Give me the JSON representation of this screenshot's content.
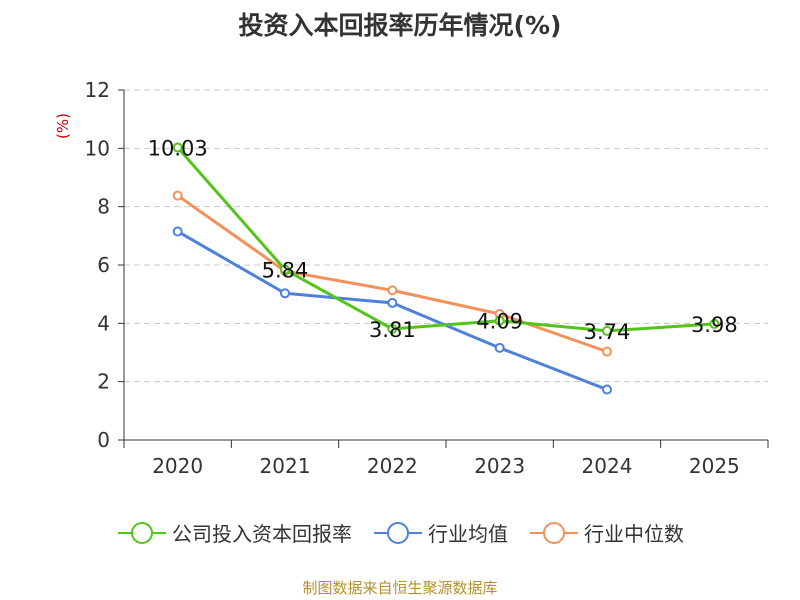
{
  "chart_data": {
    "type": "line",
    "title": "投资入本回报率历年情况(%)",
    "ylabel": "(%)",
    "xlabel": "",
    "categories": [
      "2020",
      "2021",
      "2022",
      "2023",
      "2024",
      "2025"
    ],
    "ylim": [
      0,
      12
    ],
    "yticks": [
      0,
      2,
      4,
      6,
      8,
      10,
      12
    ],
    "grid": true,
    "legend_position": "bottom",
    "series": [
      {
        "name": "公司投入资本回报率",
        "color": "#52c41a",
        "values": [
          10.03,
          5.84,
          3.81,
          4.09,
          3.74,
          3.98
        ],
        "labels": [
          "10.03",
          "5.84",
          "3.81",
          "4.09",
          "3.74",
          "3.98"
        ]
      },
      {
        "name": "行业均值",
        "color": "#4e80dd",
        "values": [
          7.15,
          5.03,
          4.7,
          3.16,
          1.73,
          null
        ]
      },
      {
        "name": "行业中位数",
        "color": "#f4905a",
        "values": [
          8.38,
          5.79,
          5.13,
          4.32,
          3.03,
          null
        ]
      }
    ]
  },
  "title": "投资入本回报率历年情况(%)",
  "source": "制图数据来自恒生聚源数据库"
}
